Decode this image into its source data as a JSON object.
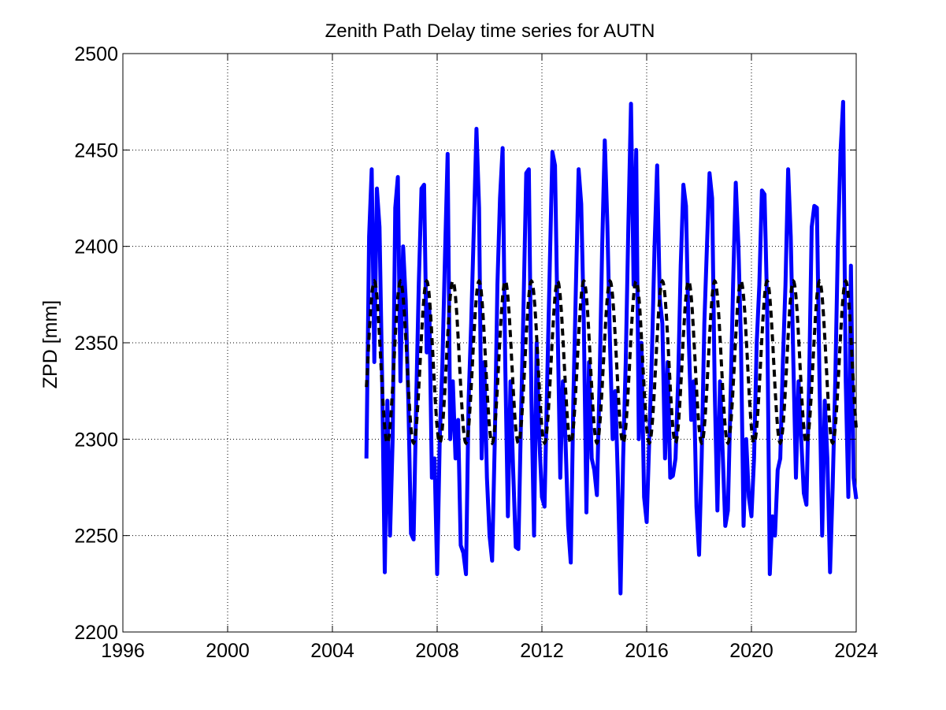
{
  "chart_data": {
    "type": "line",
    "title": "Zenith Path Delay time series for AUTN",
    "xlabel": "",
    "ylabel": "ZPD [mm]",
    "xlim": [
      1996,
      2024
    ],
    "ylim": [
      2200,
      2500
    ],
    "xticks": [
      "1996",
      "2000",
      "2004",
      "2008",
      "2012",
      "2016",
      "2020",
      "2024"
    ],
    "yticks": [
      "2200",
      "2250",
      "2300",
      "2350",
      "2400",
      "2450",
      "2500"
    ],
    "grid": true,
    "grid_style": "dotted",
    "colors": {
      "observed": "#0000ff",
      "model": "#000000",
      "grid": "#000000"
    },
    "series": [
      {
        "style": "solid-thick",
        "color": "#0000ff",
        "x": [
          2005.3,
          2005.4,
          2005.5,
          2005.6,
          2005.7,
          2005.8,
          2005.9,
          2006.0,
          2006.1,
          2006.2,
          2006.3,
          2006.4,
          2006.5,
          2006.6,
          2006.7,
          2006.8,
          2006.9,
          2007.0,
          2007.1,
          2007.2,
          2007.3,
          2007.4,
          2007.5,
          2007.6,
          2007.7,
          2007.8,
          2007.9,
          2008.0,
          2008.1,
          2008.2,
          2008.3,
          2008.4,
          2008.5,
          2008.6,
          2008.7,
          2008.8,
          2008.9,
          2009.0,
          2009.1,
          2009.2,
          2009.3,
          2009.4,
          2009.5,
          2009.6,
          2009.7,
          2009.8,
          2009.9,
          2010.0,
          2010.1,
          2010.2,
          2010.3,
          2010.4,
          2010.5,
          2010.6,
          2010.7,
          2010.8,
          2010.9,
          2011.0,
          2011.1,
          2011.2,
          2011.3,
          2011.4,
          2011.5,
          2011.6,
          2011.7,
          2011.8,
          2011.9,
          2012.0,
          2012.1,
          2012.2,
          2012.3,
          2012.4,
          2012.5,
          2012.6,
          2012.7,
          2012.8,
          2012.9,
          2013.0,
          2013.1,
          2013.2,
          2013.3,
          2013.4,
          2013.5,
          2013.6,
          2013.7,
          2013.8,
          2013.9,
          2014.0,
          2014.1,
          2014.2,
          2014.3,
          2014.4,
          2014.5,
          2014.6,
          2014.7,
          2014.8,
          2014.9,
          2015.0,
          2015.1,
          2015.2,
          2015.3,
          2015.4,
          2015.5,
          2015.6,
          2015.7,
          2015.8,
          2015.9,
          2016.0,
          2016.1,
          2016.2,
          2016.3,
          2016.4,
          2016.5,
          2016.6,
          2016.7,
          2016.8,
          2016.9,
          2017.0,
          2017.1,
          2017.2,
          2017.3,
          2017.4,
          2017.5,
          2017.6,
          2017.7,
          2017.8,
          2017.9,
          2018.0,
          2018.1,
          2018.2,
          2018.3,
          2018.4,
          2018.5,
          2018.6,
          2018.7,
          2018.8,
          2018.9,
          2019.0,
          2019.1,
          2019.2,
          2019.3,
          2019.4,
          2019.5,
          2019.6,
          2019.7,
          2019.8,
          2019.9,
          2020.0,
          2020.1,
          2020.2,
          2020.3,
          2020.4,
          2020.5,
          2020.6,
          2020.7,
          2020.8,
          2020.9,
          2021.0,
          2021.1,
          2021.2,
          2021.3,
          2021.4,
          2021.5,
          2021.6,
          2021.7,
          2021.8,
          2021.9,
          2022.0,
          2022.1,
          2022.2,
          2022.3,
          2022.4,
          2022.5,
          2022.6,
          2022.7,
          2022.8,
          2022.9,
          2023.0,
          2023.1,
          2023.2,
          2023.3,
          2023.4,
          2023.5,
          2023.6,
          2023.7,
          2023.8,
          2023.9,
          2024.0
        ],
        "y": [
          2290,
          2405,
          2440,
          2340,
          2430,
          2410,
          2330,
          2231,
          2320,
          2250,
          2300,
          2420,
          2436,
          2330,
          2400,
          2372,
          2320,
          2251,
          2248,
          2320,
          2381,
          2430,
          2432,
          2345,
          2370,
          2280,
          2290,
          2230,
          2300,
          2340,
          2396,
          2448,
          2300,
          2330,
          2290,
          2310,
          2245,
          2241,
          2230,
          2320,
          2360,
          2410,
          2461,
          2420,
          2290,
          2340,
          2280,
          2250,
          2237,
          2300,
          2380,
          2425,
          2451,
          2340,
          2260,
          2330,
          2285,
          2244,
          2243,
          2310,
          2370,
          2438,
          2440,
          2320,
          2250,
          2350,
          2300,
          2270,
          2265,
          2330,
          2390,
          2449,
          2442,
          2360,
          2280,
          2330,
          2300,
          2255,
          2236,
          2320,
          2380,
          2440,
          2422,
          2360,
          2262,
          2340,
          2290,
          2284,
          2271,
          2330,
          2400,
          2455,
          2411,
          2350,
          2300,
          2325,
          2280,
          2220,
          2290,
          2340,
          2410,
          2474,
          2380,
          2450,
          2300,
          2350,
          2270,
          2257,
          2300,
          2345,
          2400,
          2442,
          2373,
          2360,
          2290,
          2340,
          2280,
          2281,
          2290,
          2330,
          2390,
          2432,
          2421,
          2355,
          2310,
          2330,
          2265,
          2240,
          2290,
          2360,
          2400,
          2438,
          2425,
          2325,
          2263,
          2330,
          2294,
          2255,
          2263,
          2320,
          2380,
          2433,
          2401,
          2350,
          2255,
          2300,
          2270,
          2260,
          2290,
          2350,
          2380,
          2429,
          2427,
          2370,
          2230,
          2260,
          2250,
          2284,
          2290,
          2340,
          2380,
          2440,
          2405,
          2340,
          2280,
          2330,
          2300,
          2272,
          2266,
          2330,
          2410,
          2421,
          2420,
          2330,
          2250,
          2320,
          2290,
          2231,
          2275,
          2330,
          2400,
          2449,
          2475,
          2330,
          2270,
          2390,
          2280,
          2269
        ]
      },
      {
        "style": "dashed-thick",
        "color": "#000000",
        "x": [
          2005.3,
          2024.0
        ],
        "model": {
          "mean": 2340,
          "amplitude": 42,
          "period_years": 1,
          "peak_year_fraction": 0.6
        }
      }
    ]
  }
}
